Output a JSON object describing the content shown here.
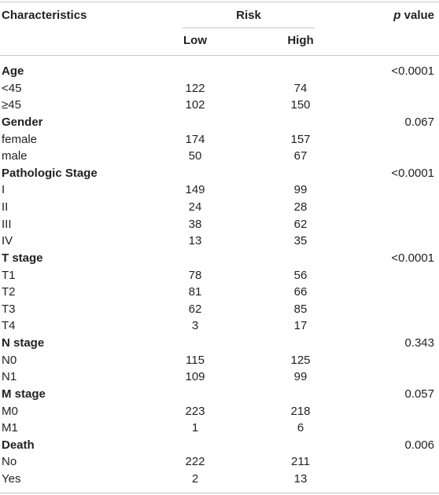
{
  "table": {
    "header": {
      "characteristics": "Characteristics",
      "risk": "Risk",
      "low": "Low",
      "high": "High",
      "p_italic": "p",
      "p_rest": "value"
    },
    "sections": [
      {
        "title": "Age",
        "p": "<0.0001",
        "rows": [
          [
            "<45",
            122,
            74
          ],
          [
            "≥45",
            102,
            150
          ]
        ]
      },
      {
        "title": "Gender",
        "p": "0.067",
        "rows": [
          [
            "female",
            174,
            157
          ],
          [
            "male",
            50,
            67
          ]
        ]
      },
      {
        "title": "Pathologic Stage",
        "p": "<0.0001",
        "rows": [
          [
            "I",
            149,
            99
          ],
          [
            "II",
            24,
            28
          ],
          [
            "III",
            38,
            62
          ],
          [
            "IV",
            13,
            35
          ]
        ]
      },
      {
        "title": "T stage",
        "p": "<0.0001",
        "rows": [
          [
            "T1",
            78,
            56
          ],
          [
            "T2",
            81,
            66
          ],
          [
            "T3",
            62,
            85
          ],
          [
            "T4",
            3,
            17
          ]
        ]
      },
      {
        "title": "N stage",
        "p": "0.343",
        "rows": [
          [
            "N0",
            115,
            125
          ],
          [
            "N1",
            109,
            99
          ]
        ]
      },
      {
        "title": "M stage",
        "p": "0.057",
        "rows": [
          [
            "M0",
            223,
            218
          ],
          [
            "M1",
            1,
            6
          ]
        ]
      },
      {
        "title": "Death",
        "p": "0.006",
        "rows": [
          [
            "No",
            222,
            211
          ],
          [
            "Yes",
            2,
            13
          ]
        ]
      }
    ]
  }
}
